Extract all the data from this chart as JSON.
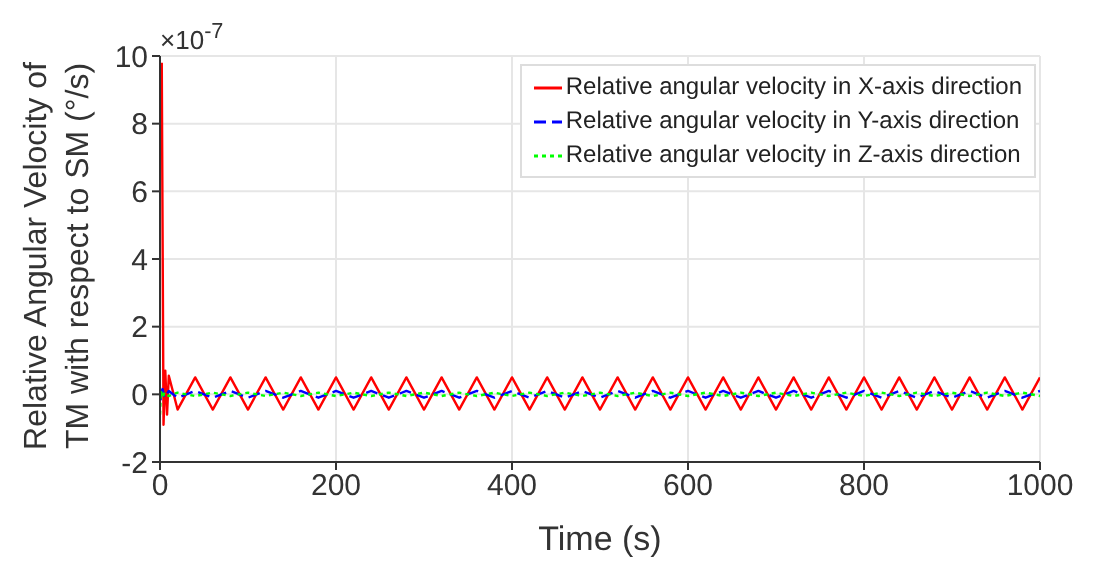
{
  "chart_data": {
    "type": "line",
    "xlabel": "Time (s)",
    "ylabel": "Relative Angular Velocity of\nTM with respect to SM (°/s)",
    "annotations": [
      "×10$^{-7}$"
    ],
    "xlim": [
      0,
      1000
    ],
    "xticks": [
      0,
      200,
      400,
      600,
      800,
      1000
    ],
    "ylim": [
      -2,
      10
    ],
    "yticks": [
      -2,
      0,
      2,
      4,
      6,
      8,
      10
    ],
    "grid": true,
    "legend": "top right",
    "marker": "none",
    "series": [
      {
        "name": "Relative angular velocity in X-axis direction",
        "color": "#ff0000",
        "line_style": "solid",
        "x": [
          2,
          4,
          6,
          8,
          10,
          20,
          40,
          60,
          80,
          100,
          120,
          140,
          160,
          180,
          200,
          220,
          240,
          260,
          280,
          300,
          320,
          340,
          360,
          380,
          400,
          420,
          440,
          460,
          480,
          500,
          520,
          540,
          560,
          580,
          600,
          620,
          640,
          660,
          680,
          700,
          720,
          740,
          760,
          780,
          800,
          820,
          840,
          860,
          880,
          900,
          920,
          940,
          960,
          980,
          1000
        ],
        "values": [
          9.8,
          -0.9,
          0.7,
          -0.6,
          0.55,
          -0.45,
          0.5,
          -0.45,
          0.5,
          -0.45,
          0.5,
          -0.45,
          0.5,
          -0.45,
          0.5,
          -0.45,
          0.5,
          -0.45,
          0.5,
          -0.45,
          0.5,
          -0.45,
          0.5,
          -0.45,
          0.5,
          -0.45,
          0.5,
          -0.45,
          0.5,
          -0.45,
          0.5,
          -0.45,
          0.5,
          -0.45,
          0.5,
          -0.45,
          0.5,
          -0.45,
          0.5,
          -0.45,
          0.5,
          -0.45,
          0.5,
          -0.45,
          0.5,
          -0.45,
          0.5,
          -0.45,
          0.5,
          -0.45,
          0.5,
          -0.45,
          0.5,
          -0.45,
          0.5
        ]
      },
      {
        "name": "Relative angular velocity in Y-axis direction",
        "color": "#0000ff",
        "line_style": "dashed",
        "x": [
          0,
          1,
          3,
          5,
          10,
          20,
          40,
          60,
          80,
          100,
          120,
          140,
          160,
          180,
          200,
          220,
          240,
          260,
          280,
          300,
          320,
          340,
          360,
          380,
          400,
          420,
          440,
          460,
          480,
          500,
          520,
          540,
          560,
          580,
          600,
          620,
          640,
          660,
          680,
          700,
          720,
          740,
          760,
          780,
          800,
          820,
          840,
          860,
          880,
          900,
          920,
          940,
          960,
          980,
          1000
        ],
        "values": [
          0.2,
          -0.15,
          0.15,
          -0.1,
          0.1,
          -0.1,
          0.1,
          -0.1,
          0.1,
          -0.1,
          0.1,
          -0.1,
          0.1,
          -0.1,
          0.1,
          -0.1,
          0.1,
          -0.1,
          0.1,
          -0.1,
          0.1,
          -0.1,
          0.1,
          -0.1,
          0.1,
          -0.1,
          0.1,
          -0.1,
          0.1,
          -0.1,
          0.1,
          -0.1,
          0.1,
          -0.1,
          0.1,
          -0.1,
          0.1,
          -0.1,
          0.1,
          -0.1,
          0.1,
          -0.1,
          0.1,
          -0.1,
          0.1,
          -0.1,
          0.1,
          -0.1,
          0.1,
          -0.1,
          0.1,
          -0.1,
          0.1,
          -0.1,
          0.1
        ]
      },
      {
        "name": "Relative angular velocity in Z-axis direction",
        "color": "#00ff00",
        "line_style": "dotted",
        "x": [
          0,
          1,
          3,
          5,
          10,
          20,
          40,
          60,
          80,
          100,
          120,
          140,
          160,
          180,
          200,
          220,
          240,
          260,
          280,
          300,
          320,
          340,
          360,
          380,
          400,
          420,
          440,
          460,
          480,
          500,
          520,
          540,
          560,
          580,
          600,
          620,
          640,
          660,
          680,
          700,
          720,
          740,
          760,
          780,
          800,
          820,
          840,
          860,
          880,
          900,
          920,
          940,
          960,
          980,
          1000
        ],
        "values": [
          -0.6,
          0.1,
          -0.1,
          0.05,
          -0.05,
          0.05,
          -0.05,
          0.05,
          -0.05,
          0.05,
          -0.05,
          0.05,
          -0.05,
          0.05,
          -0.05,
          0.05,
          -0.05,
          0.05,
          -0.05,
          0.05,
          -0.05,
          0.05,
          -0.05,
          0.05,
          -0.05,
          0.05,
          -0.05,
          0.05,
          -0.05,
          0.05,
          -0.05,
          0.05,
          -0.05,
          0.05,
          -0.05,
          0.05,
          -0.05,
          0.05,
          -0.05,
          0.05,
          -0.05,
          0.05,
          -0.05,
          0.05,
          -0.05,
          0.05,
          -0.05,
          0.05,
          -0.05,
          0.05,
          -0.05,
          0.05,
          -0.05,
          0.05,
          -0.05
        ]
      }
    ]
  }
}
